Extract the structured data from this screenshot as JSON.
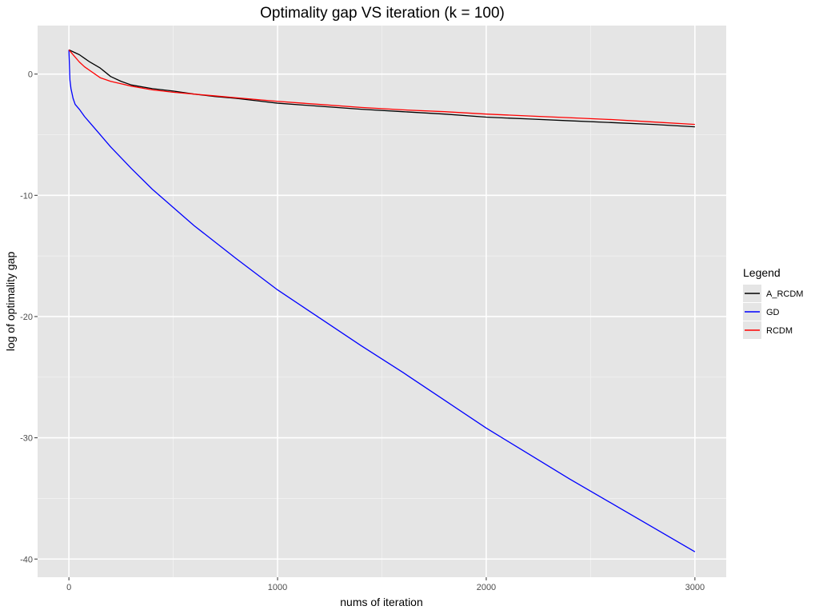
{
  "chart_data": {
    "type": "line",
    "title": "Optimality gap VS iteration (k = 100)",
    "xlabel": "nums of iteration",
    "ylabel": "log of optimality gap",
    "xlim": [
      -150,
      3150
    ],
    "ylim": [
      -41.5,
      4
    ],
    "x_ticks": [
      0,
      1000,
      2000,
      3000
    ],
    "x_tick_labels": [
      "0",
      "1000",
      "2000",
      "3000"
    ],
    "y_ticks": [
      0,
      -10,
      -20,
      -30,
      -40
    ],
    "y_tick_labels": [
      "0",
      "-10",
      "-20",
      "-30",
      "-40"
    ],
    "grid": true,
    "legend_title": "Legend",
    "legend_position": "right",
    "series": [
      {
        "name": "A_RCDM",
        "color": "#000000",
        "x": [
          0,
          25,
          50,
          75,
          100,
          150,
          200,
          250,
          300,
          400,
          500,
          600,
          700,
          800,
          900,
          1000,
          1200,
          1400,
          1600,
          1800,
          2000,
          2200,
          2400,
          2600,
          2800,
          3000
        ],
        "y": [
          2.0,
          1.8,
          1.6,
          1.3,
          1.0,
          0.5,
          -0.2,
          -0.6,
          -0.9,
          -1.2,
          -1.4,
          -1.65,
          -1.85,
          -2.0,
          -2.2,
          -2.4,
          -2.65,
          -2.9,
          -3.1,
          -3.3,
          -3.55,
          -3.7,
          -3.85,
          -4.0,
          -4.15,
          -4.35
        ]
      },
      {
        "name": "GD",
        "color": "#0000ff",
        "x": [
          0,
          5,
          10,
          20,
          30,
          50,
          75,
          100,
          150,
          200,
          300,
          400,
          500,
          600,
          800,
          1000,
          1200,
          1400,
          1600,
          1800,
          2000,
          2200,
          2400,
          2600,
          2800,
          3000
        ],
        "y": [
          2.0,
          -0.5,
          -1.2,
          -2.0,
          -2.5,
          -2.9,
          -3.5,
          -4.0,
          -5.0,
          -6.0,
          -7.8,
          -9.5,
          -11.0,
          -12.5,
          -15.2,
          -17.8,
          -20.1,
          -22.4,
          -24.6,
          -26.9,
          -29.2,
          -31.3,
          -33.4,
          -35.4,
          -37.4,
          -39.4
        ]
      },
      {
        "name": "RCDM",
        "color": "#ff0000",
        "x": [
          0,
          25,
          50,
          75,
          100,
          150,
          200,
          250,
          300,
          400,
          500,
          600,
          700,
          800,
          900,
          1000,
          1200,
          1400,
          1600,
          1800,
          2000,
          2200,
          2400,
          2600,
          2800,
          3000
        ],
        "y": [
          2.0,
          1.5,
          1.0,
          0.6,
          0.3,
          -0.3,
          -0.6,
          -0.8,
          -1.0,
          -1.3,
          -1.5,
          -1.65,
          -1.8,
          -1.95,
          -2.1,
          -2.25,
          -2.5,
          -2.75,
          -2.95,
          -3.1,
          -3.3,
          -3.45,
          -3.6,
          -3.75,
          -3.95,
          -4.15
        ]
      }
    ]
  }
}
